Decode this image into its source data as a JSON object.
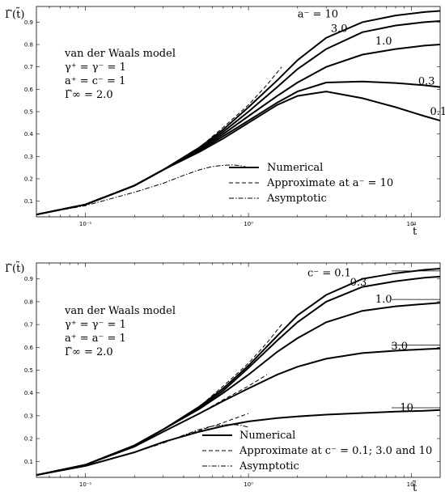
{
  "chart_data": [
    {
      "type": "line",
      "ylabel": "Γ̃(t̃)",
      "xlabel": "t̃",
      "xscale": "log",
      "xlim": [
        0.05,
        15
      ],
      "ylim": [
        0.03,
        0.97
      ],
      "xticks": [
        {
          "value": 0.1,
          "label": "10⁻¹"
        },
        {
          "value": 1,
          "label": "10⁰"
        },
        {
          "value": 10,
          "label": "10¹"
        }
      ],
      "yticks": [
        0.1,
        0.2,
        0.3,
        0.4,
        0.5,
        0.6,
        0.7,
        0.8,
        0.9
      ],
      "ytick_labels": [
        "0.1",
        "0.2",
        "0.3",
        "0.4",
        "0.5",
        "0.6",
        "0.7",
        "0.8",
        "0.9"
      ],
      "annotation_lines": [
        "van der Waals model",
        "γ⁺ = γ⁻ = 1",
        "a⁺ = c⁻ = 1",
        "Γ̃∞ = 2.0"
      ],
      "series": [
        {
          "label": "a⁻ = 10",
          "style": "solid",
          "label_at": [
            2.0,
            0.935
          ],
          "x": [
            0.05,
            0.1,
            0.2,
            0.3,
            0.5,
            0.7,
            1.0,
            1.5,
            2.0,
            3.0,
            5.0,
            8.0,
            12.0,
            15.0
          ],
          "y": [
            0.04,
            0.085,
            0.17,
            0.24,
            0.34,
            0.42,
            0.52,
            0.64,
            0.73,
            0.83,
            0.9,
            0.93,
            0.945,
            0.95
          ]
        },
        {
          "label": "3.0",
          "style": "solid",
          "label_at": [
            3.2,
            0.87
          ],
          "x": [
            0.05,
            0.1,
            0.2,
            0.3,
            0.5,
            0.7,
            1.0,
            1.5,
            2.0,
            3.0,
            5.0,
            8.0,
            12.0,
            15.0
          ],
          "y": [
            0.04,
            0.085,
            0.17,
            0.24,
            0.335,
            0.41,
            0.5,
            0.61,
            0.69,
            0.78,
            0.855,
            0.885,
            0.9,
            0.905
          ]
        },
        {
          "label": "1.0",
          "style": "solid",
          "label_at": [
            6.0,
            0.815
          ],
          "x": [
            0.05,
            0.1,
            0.2,
            0.3,
            0.5,
            0.7,
            1.0,
            1.5,
            2.0,
            3.0,
            5.0,
            8.0,
            12.0,
            15.0
          ],
          "y": [
            0.04,
            0.085,
            0.17,
            0.24,
            0.33,
            0.4,
            0.48,
            0.57,
            0.63,
            0.7,
            0.755,
            0.78,
            0.795,
            0.8
          ]
        },
        {
          "label": "0.3",
          "style": "solid",
          "label_at": [
            11.0,
            0.635
          ],
          "x": [
            0.05,
            0.1,
            0.2,
            0.3,
            0.5,
            0.7,
            1.0,
            1.5,
            2.0,
            3.0,
            5.0,
            8.0,
            12.0,
            15.0
          ],
          "y": [
            0.04,
            0.085,
            0.17,
            0.24,
            0.325,
            0.39,
            0.46,
            0.54,
            0.59,
            0.63,
            0.635,
            0.628,
            0.618,
            0.61
          ]
        },
        {
          "label": "0.1",
          "style": "solid",
          "label_at": [
            13.0,
            0.5
          ],
          "x": [
            0.05,
            0.1,
            0.2,
            0.3,
            0.5,
            0.7,
            1.0,
            1.5,
            2.0,
            3.0,
            5.0,
            8.0,
            12.0,
            15.0
          ],
          "y": [
            0.04,
            0.085,
            0.17,
            0.24,
            0.32,
            0.38,
            0.45,
            0.53,
            0.57,
            0.59,
            0.56,
            0.52,
            0.48,
            0.46
          ]
        },
        {
          "label": "",
          "style": "dashed",
          "x": [
            0.05,
            0.1,
            0.2,
            0.3,
            0.5,
            0.7,
            1.0,
            1.3,
            1.6
          ],
          "y": [
            0.04,
            0.085,
            0.17,
            0.24,
            0.34,
            0.43,
            0.53,
            0.62,
            0.7
          ]
        },
        {
          "label": "",
          "style": "dashdot",
          "x": [
            0.05,
            0.1,
            0.2,
            0.3,
            0.4,
            0.5,
            0.6,
            0.7,
            0.8,
            0.9,
            1.0
          ],
          "y": [
            0.04,
            0.08,
            0.14,
            0.18,
            0.215,
            0.24,
            0.255,
            0.26,
            0.262,
            0.258,
            0.25
          ]
        }
      ],
      "legend": {
        "position": "right",
        "entries": [
          {
            "text": "Numerical",
            "style": "solid"
          },
          {
            "text": "Approximate at a⁻ = 10",
            "style": "dashed"
          },
          {
            "text": "Asymptotic",
            "style": "dashdot"
          }
        ]
      }
    },
    {
      "type": "line",
      "ylabel": "Γ̃(t̃)",
      "xlabel": "t̃",
      "xscale": "log",
      "xlim": [
        0.05,
        15
      ],
      "ylim": [
        0.03,
        0.97
      ],
      "xticks": [
        {
          "value": 0.1,
          "label": "10⁻¹"
        },
        {
          "value": 1,
          "label": "10⁰"
        },
        {
          "value": 10,
          "label": "10¹"
        }
      ],
      "yticks": [
        0.1,
        0.2,
        0.3,
        0.4,
        0.5,
        0.6,
        0.7,
        0.8,
        0.9
      ],
      "ytick_labels": [
        "0.1",
        "0.2",
        "0.3",
        "0.4",
        "0.5",
        "0.6",
        "0.7",
        "0.8",
        "0.9"
      ],
      "annotation_lines": [
        "van der Waals model",
        "γ⁺ = γ⁻ = 1",
        "a⁺ = a⁻ = 1",
        "Γ̃∞ = 2.0"
      ],
      "series": [
        {
          "label": "c⁻ = 0.1",
          "style": "solid",
          "label_at": [
            2.3,
            0.925
          ],
          "x": [
            0.05,
            0.1,
            0.2,
            0.3,
            0.5,
            0.7,
            1.0,
            1.5,
            2.0,
            3.0,
            5.0,
            8.0,
            12.0,
            15.0
          ],
          "y": [
            0.04,
            0.085,
            0.17,
            0.24,
            0.34,
            0.42,
            0.52,
            0.65,
            0.74,
            0.83,
            0.9,
            0.925,
            0.94,
            0.945
          ]
        },
        {
          "label": "0.3",
          "style": "solid",
          "label_at": [
            4.2,
            0.885
          ],
          "x": [
            0.05,
            0.1,
            0.2,
            0.3,
            0.5,
            0.7,
            1.0,
            1.5,
            2.0,
            3.0,
            5.0,
            8.0,
            12.0,
            15.0
          ],
          "y": [
            0.04,
            0.085,
            0.17,
            0.24,
            0.335,
            0.41,
            0.51,
            0.63,
            0.71,
            0.8,
            0.865,
            0.89,
            0.905,
            0.91
          ]
        },
        {
          "label": "1.0",
          "style": "solid",
          "label_at": [
            6.0,
            0.81
          ],
          "x": [
            0.05,
            0.1,
            0.2,
            0.3,
            0.5,
            0.7,
            1.0,
            1.5,
            2.0,
            3.0,
            5.0,
            8.0,
            12.0,
            15.0
          ],
          "y": [
            0.04,
            0.085,
            0.17,
            0.24,
            0.33,
            0.4,
            0.48,
            0.58,
            0.64,
            0.71,
            0.76,
            0.78,
            0.79,
            0.795
          ]
        },
        {
          "label": "3.0",
          "style": "solid",
          "label_at": [
            7.5,
            0.605
          ],
          "x": [
            0.05,
            0.1,
            0.2,
            0.3,
            0.5,
            0.7,
            1.0,
            1.5,
            2.0,
            3.0,
            5.0,
            8.0,
            12.0,
            15.0
          ],
          "y": [
            0.04,
            0.085,
            0.165,
            0.23,
            0.31,
            0.365,
            0.42,
            0.48,
            0.515,
            0.55,
            0.575,
            0.585,
            0.592,
            0.595
          ]
        },
        {
          "label": "10",
          "style": "solid",
          "label_at": [
            8.5,
            0.335
          ],
          "x": [
            0.05,
            0.1,
            0.2,
            0.3,
            0.5,
            0.7,
            1.0,
            1.5,
            2.0,
            3.0,
            5.0,
            8.0,
            12.0,
            15.0
          ],
          "y": [
            0.04,
            0.08,
            0.14,
            0.185,
            0.23,
            0.255,
            0.275,
            0.29,
            0.297,
            0.305,
            0.312,
            0.318,
            0.322,
            0.325
          ]
        },
        {
          "label": "",
          "style": "dashed",
          "x": [
            0.05,
            0.1,
            0.2,
            0.3,
            0.5,
            0.7,
            1.0,
            1.3,
            1.6
          ],
          "y": [
            0.04,
            0.085,
            0.17,
            0.24,
            0.34,
            0.43,
            0.53,
            0.62,
            0.7
          ]
        },
        {
          "label": "",
          "style": "dashed",
          "x": [
            0.05,
            0.1,
            0.2,
            0.3,
            0.5,
            0.7,
            1.0,
            1.3
          ],
          "y": [
            0.04,
            0.085,
            0.165,
            0.23,
            0.31,
            0.37,
            0.43,
            0.48
          ]
        },
        {
          "label": "",
          "style": "dashed",
          "x": [
            0.05,
            0.1,
            0.2,
            0.3,
            0.5,
            0.7,
            1.0
          ],
          "y": [
            0.04,
            0.08,
            0.14,
            0.185,
            0.235,
            0.27,
            0.31
          ]
        },
        {
          "label": "",
          "style": "dashdot",
          "x": [
            0.05,
            0.1,
            0.2,
            0.3,
            0.4,
            0.5,
            0.6,
            0.7,
            0.8,
            0.9,
            1.0
          ],
          "y": [
            0.04,
            0.08,
            0.14,
            0.18,
            0.215,
            0.24,
            0.255,
            0.26,
            0.262,
            0.258,
            0.25
          ]
        }
      ],
      "reference_levels": [
        0.935,
        0.81,
        0.61,
        0.335
      ],
      "legend": {
        "position": "bottom-right",
        "entries": [
          {
            "text": "Numerical",
            "style": "solid"
          },
          {
            "text": "Approximate at c⁻ = 0.1;  3.0 and 10",
            "style": "dashed"
          },
          {
            "text": "Asymptotic",
            "style": "dashdot"
          }
        ]
      }
    }
  ]
}
